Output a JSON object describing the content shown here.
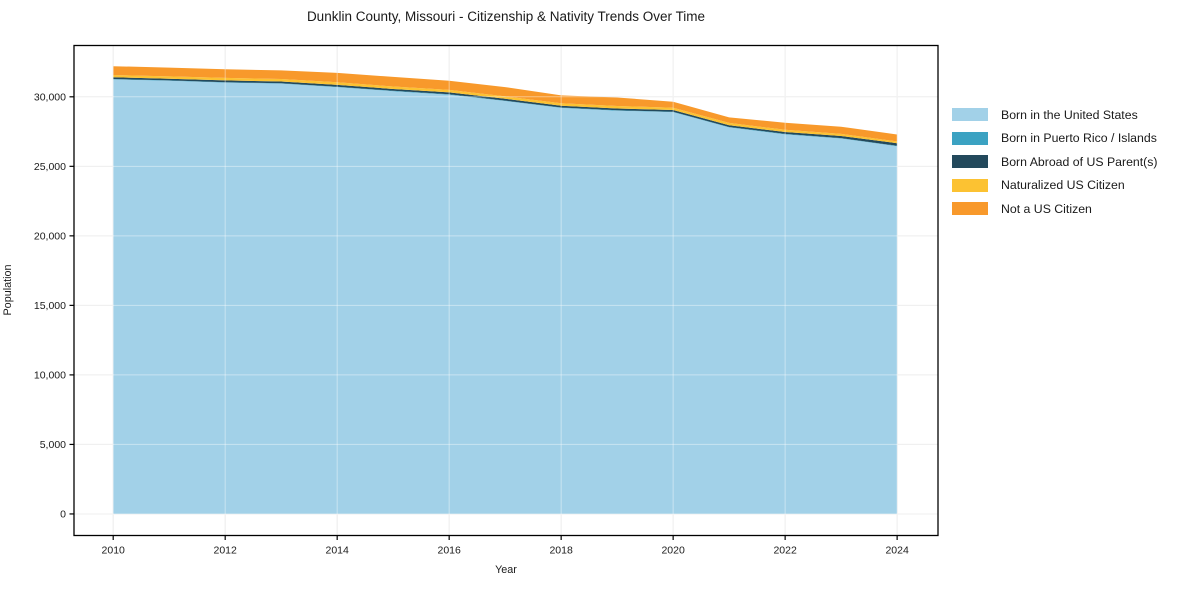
{
  "title": "Dunklin County, Missouri - Citizenship & Nativity Trends Over Time",
  "chart_data": {
    "type": "area",
    "stacked": true,
    "title": "Dunklin County, Missouri - Citizenship & Nativity Trends Over Time",
    "xlabel": "Year",
    "ylabel": "Population",
    "x": [
      2010,
      2011,
      2012,
      2013,
      2014,
      2015,
      2016,
      2017,
      2018,
      2019,
      2020,
      2021,
      2022,
      2023,
      2024
    ],
    "series": [
      {
        "name": "Born in the United States",
        "color": "#a2d1e8",
        "values": [
          31250,
          31150,
          31020,
          30950,
          30700,
          30400,
          30150,
          29700,
          29200,
          29000,
          28900,
          27800,
          27300,
          27000,
          26450
        ]
      },
      {
        "name": "Born in Puerto Rico / Islands",
        "color": "#3ba2c2",
        "values": [
          30,
          30,
          30,
          30,
          30,
          30,
          30,
          30,
          30,
          30,
          30,
          30,
          30,
          30,
          30
        ]
      },
      {
        "name": "Born Abroad of US Parent(s)",
        "color": "#23495c",
        "values": [
          120,
          120,
          130,
          120,
          130,
          130,
          140,
          130,
          130,
          130,
          120,
          130,
          140,
          150,
          180
        ]
      },
      {
        "name": "Naturalized US Citizen",
        "color": "#fcc232",
        "values": [
          170,
          170,
          180,
          180,
          190,
          180,
          180,
          170,
          170,
          180,
          170,
          160,
          160,
          150,
          130
        ]
      },
      {
        "name": "Not a US Citizen",
        "color": "#f8992b",
        "values": [
          630,
          630,
          620,
          620,
          670,
          690,
          650,
          670,
          570,
          610,
          430,
          400,
          510,
          520,
          500
        ]
      }
    ],
    "xticks": [
      2010,
      2012,
      2014,
      2016,
      2018,
      2020,
      2022,
      2024
    ],
    "xtick_labels": [
      "2010",
      "2012",
      "2014",
      "2016",
      "2018",
      "2020",
      "2022",
      "2024"
    ],
    "yticks": [
      0,
      5000,
      10000,
      15000,
      20000,
      25000,
      30000
    ],
    "ytick_labels": [
      "0",
      "5,000",
      "10,000",
      "15,000",
      "20,000",
      "25,000",
      "30,000"
    ],
    "xlim": [
      2009.3,
      2024.73
    ],
    "ylim": [
      -1550,
      33690
    ],
    "grid": true,
    "legend_position": "right-outside"
  },
  "style": {
    "grid_color": "#e3e3e3",
    "grid_overlay_color": "rgba(255,255,255,0.42)",
    "spine_color": "#000000",
    "tick_color": "#000000",
    "text_color": "#1a1a1a",
    "background": "#ffffff"
  }
}
